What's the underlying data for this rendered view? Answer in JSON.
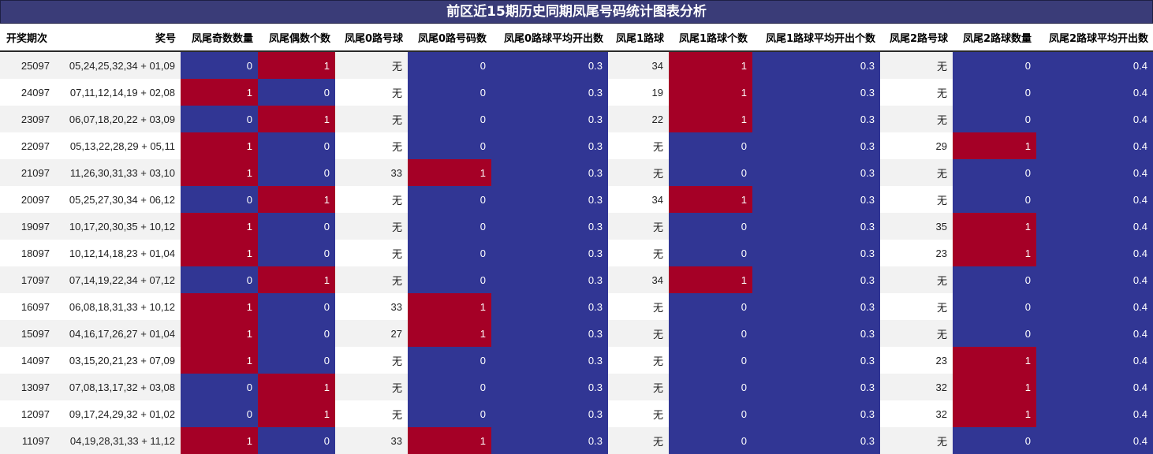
{
  "title": "前区近15期历史同期凤尾号码统计图表分析",
  "colors": {
    "low": "#313694",
    "high": "#a50026",
    "header": "#3a3c78"
  },
  "chart_data": {
    "type": "table",
    "columns": [
      "开奖期次",
      "奖号",
      "凤尾奇数数量",
      "凤尾偶数个数",
      "凤尾0路号球",
      "凤尾0路号码数",
      "凤尾0路球平均开出数",
      "凤尾1路球",
      "凤尾1路球个数",
      "凤尾1路球平均开出个数",
      "凤尾2路号球",
      "凤尾2路球数量",
      "凤尾2路球平均开出数"
    ],
    "rows": [
      [
        "25097",
        "05,24,25,32,34 + 01,09",
        "0",
        "1",
        "无",
        "0",
        "0.3",
        "34",
        "1",
        "0.3",
        "无",
        "0",
        "0.4"
      ],
      [
        "24097",
        "07,11,12,14,19 + 02,08",
        "1",
        "0",
        "无",
        "0",
        "0.3",
        "19",
        "1",
        "0.3",
        "无",
        "0",
        "0.4"
      ],
      [
        "23097",
        "06,07,18,20,22 + 03,09",
        "0",
        "1",
        "无",
        "0",
        "0.3",
        "22",
        "1",
        "0.3",
        "无",
        "0",
        "0.4"
      ],
      [
        "22097",
        "05,13,22,28,29 + 05,11",
        "1",
        "0",
        "无",
        "0",
        "0.3",
        "无",
        "0",
        "0.3",
        "29",
        "1",
        "0.4"
      ],
      [
        "21097",
        "11,26,30,31,33 + 03,10",
        "1",
        "0",
        "33",
        "1",
        "0.3",
        "无",
        "0",
        "0.3",
        "无",
        "0",
        "0.4"
      ],
      [
        "20097",
        "05,25,27,30,34 + 06,12",
        "0",
        "1",
        "无",
        "0",
        "0.3",
        "34",
        "1",
        "0.3",
        "无",
        "0",
        "0.4"
      ],
      [
        "19097",
        "10,17,20,30,35 + 10,12",
        "1",
        "0",
        "无",
        "0",
        "0.3",
        "无",
        "0",
        "0.3",
        "35",
        "1",
        "0.4"
      ],
      [
        "18097",
        "10,12,14,18,23 + 01,04",
        "1",
        "0",
        "无",
        "0",
        "0.3",
        "无",
        "0",
        "0.3",
        "23",
        "1",
        "0.4"
      ],
      [
        "17097",
        "07,14,19,22,34 + 07,12",
        "0",
        "1",
        "无",
        "0",
        "0.3",
        "34",
        "1",
        "0.3",
        "无",
        "0",
        "0.4"
      ],
      [
        "16097",
        "06,08,18,31,33 + 10,12",
        "1",
        "0",
        "33",
        "1",
        "0.3",
        "无",
        "0",
        "0.3",
        "无",
        "0",
        "0.4"
      ],
      [
        "15097",
        "04,16,17,26,27 + 01,04",
        "1",
        "0",
        "27",
        "1",
        "0.3",
        "无",
        "0",
        "0.3",
        "无",
        "0",
        "0.4"
      ],
      [
        "14097",
        "03,15,20,21,23 + 07,09",
        "1",
        "0",
        "无",
        "0",
        "0.3",
        "无",
        "0",
        "0.3",
        "23",
        "1",
        "0.4"
      ],
      [
        "13097",
        "07,08,13,17,32 + 03,08",
        "0",
        "1",
        "无",
        "0",
        "0.3",
        "无",
        "0",
        "0.3",
        "32",
        "1",
        "0.4"
      ],
      [
        "12097",
        "09,17,24,29,32 + 01,02",
        "0",
        "1",
        "无",
        "0",
        "0.3",
        "无",
        "0",
        "0.3",
        "32",
        "1",
        "0.4"
      ],
      [
        "11097",
        "04,19,28,31,33 + 11,12",
        "1",
        "0",
        "33",
        "1",
        "0.3",
        "无",
        "0",
        "0.3",
        "无",
        "0",
        "0.4"
      ]
    ]
  }
}
